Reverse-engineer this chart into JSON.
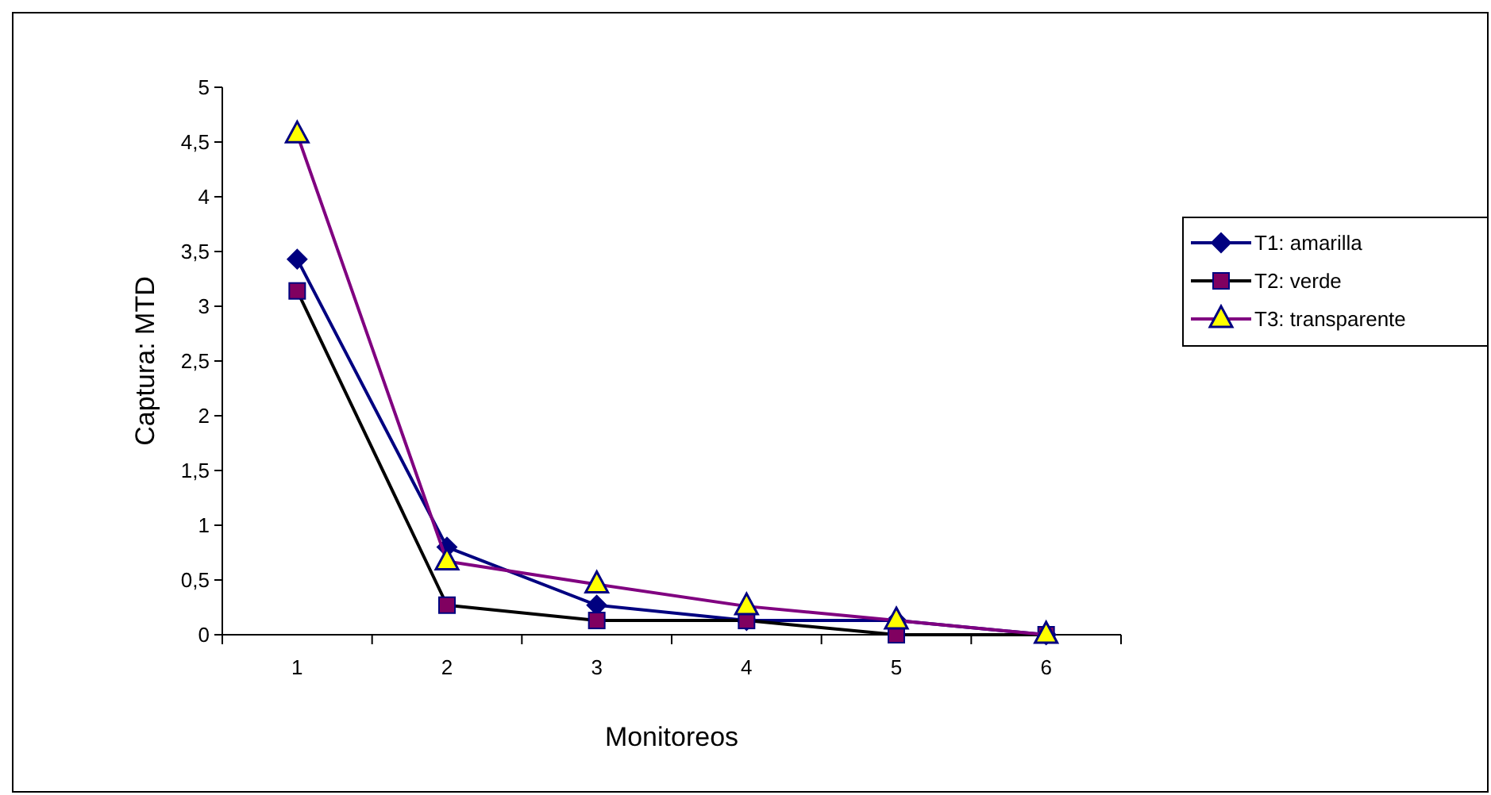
{
  "chart_data": {
    "type": "line",
    "xlabel": "Monitoreos",
    "ylabel": "Captura: MTD",
    "categories": [
      "1",
      "2",
      "3",
      "4",
      "5",
      "6"
    ],
    "ylim": [
      0,
      5
    ],
    "yticks": [
      0,
      {
        "value": 0.5,
        "label": "0,5"
      },
      1,
      {
        "value": 1.5,
        "label": "1,5"
      },
      2,
      {
        "value": 2.5,
        "label": "2,5"
      },
      3,
      {
        "value": 3.5,
        "label": "3,5"
      },
      4,
      {
        "value": 4.5,
        "label": "4,5"
      },
      5
    ],
    "grid": false,
    "legend": "right",
    "series": [
      {
        "name": "T1: amarilla",
        "color": "#000080",
        "marker": "diamond",
        "colors": [
          "#000080",
          "#000080",
          "#000080",
          "#000080",
          "#000080",
          "#000080"
        ],
        "values": [
          3.43,
          0.8,
          0.27,
          0.13,
          0.13,
          0
        ]
      },
      {
        "name": "T2: verde",
        "color": "#000000",
        "marker": "square",
        "colors": [
          "#800060",
          "#800060",
          "#800060",
          "#800060",
          "#800060",
          "#800060"
        ],
        "values": [
          3.14,
          0.27,
          0.13,
          0.13,
          0,
          0
        ]
      },
      {
        "name": "T3: transparente",
        "color": "#800080",
        "marker": "triangle",
        "colors": [
          "#ffff00",
          "#ffff00",
          "#ffff00",
          "#ffff00",
          "#ffff00",
          "#ffff00"
        ],
        "values": [
          4.57,
          0.67,
          0.46,
          0.26,
          0.13,
          0
        ]
      }
    ]
  }
}
